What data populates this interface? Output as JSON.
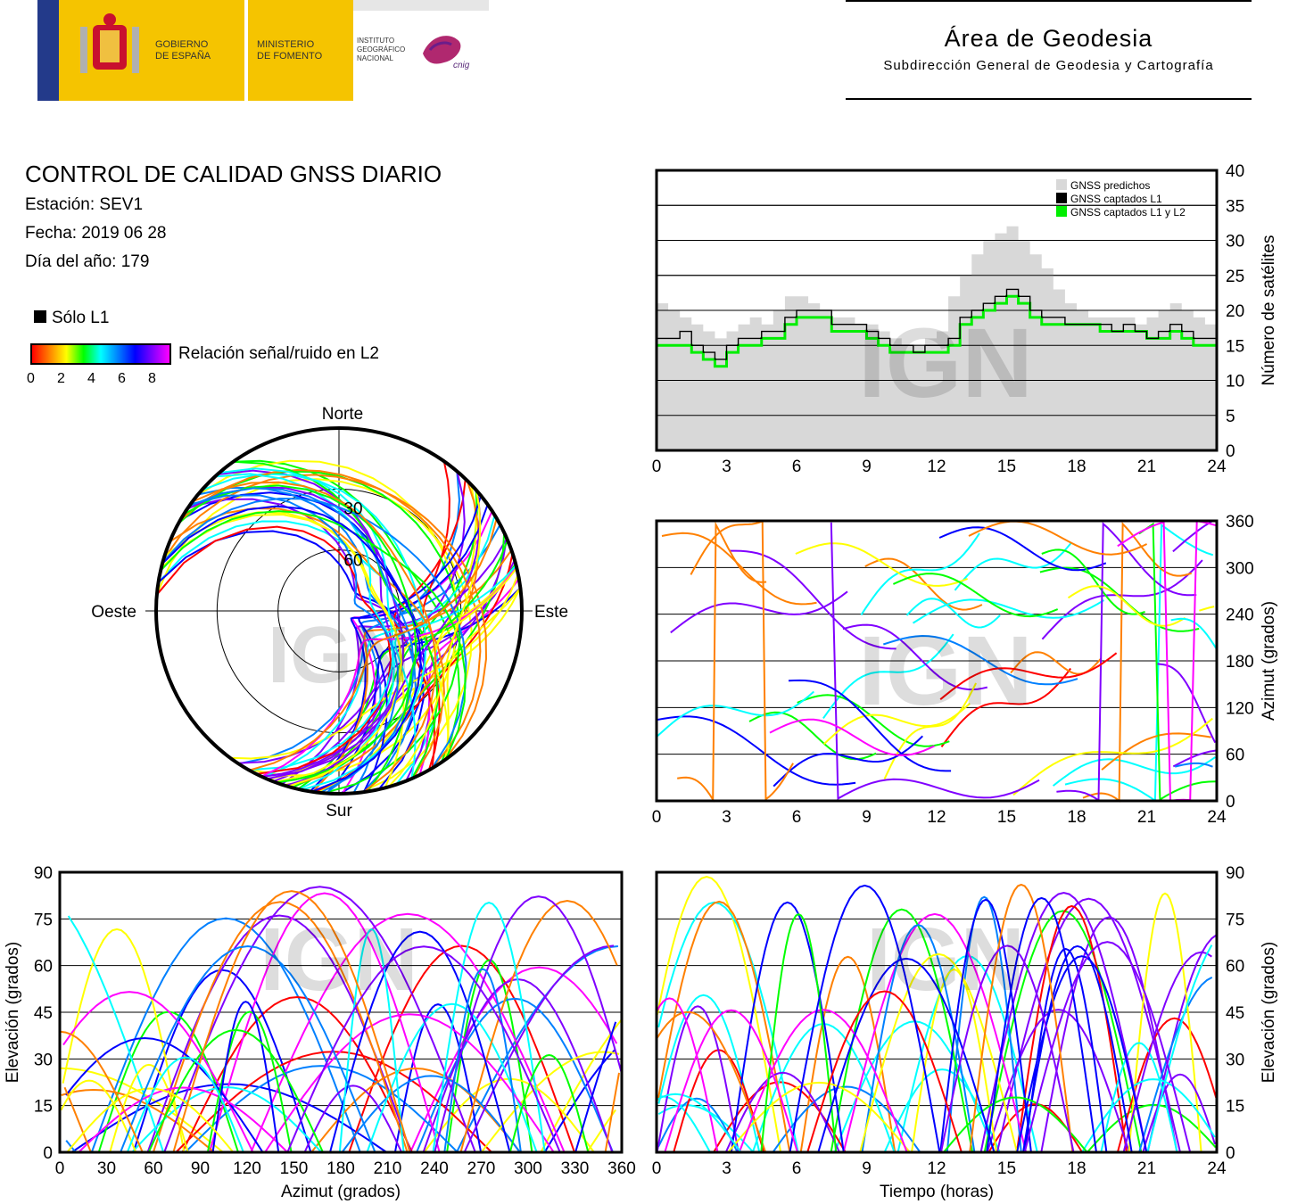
{
  "header": {
    "gobierno": "GOBIERNO DE ESPAÑA",
    "ministerio": "MINISTERIO DE FOMENTO",
    "instituto": "INSTITUTO GEOGRÁFICO NACIONAL",
    "cnig": "cnig",
    "area_title": "Área de Geodesia",
    "area_subtitle": "Subdirección General de Geodesia y Cartografía"
  },
  "info": {
    "title": "CONTROL DE CALIDAD GNSS DIARIO",
    "station": "Estación: SEV1",
    "date": "Fecha: 2019 06 28",
    "doy": "Día del año: 179"
  },
  "legend": {
    "l1_only": "Sólo L1",
    "snr_label": "Relación señal/ruido en L2",
    "snr_ticks": [
      "0",
      "2",
      "4",
      "6",
      "8"
    ]
  },
  "watermark": "IGN",
  "colors": {
    "l1": "#000000",
    "predicted": "#d8d8d8",
    "l1l2": "#00ee00",
    "snr_scale": [
      "#ff0000",
      "#ff8000",
      "#ffff00",
      "#00ff00",
      "#00ffff",
      "#0080ff",
      "#0000ff",
      "#8000ff",
      "#ff00ff"
    ]
  },
  "chart_data": [
    {
      "type": "area",
      "id": "satellite-count",
      "ylabel": "Número de satélites",
      "xlim": [
        0,
        24
      ],
      "ylim": [
        0,
        40
      ],
      "xticks": [
        "0",
        "3",
        "6",
        "9",
        "12",
        "15",
        "18",
        "21",
        "24"
      ],
      "yticks": [
        "0",
        "5",
        "10",
        "15",
        "20",
        "25",
        "30",
        "35",
        "40"
      ],
      "grid": true,
      "legend_position": "top-right",
      "series": [
        {
          "name": "GNSS predichos",
          "x": [
            0,
            0.5,
            1,
            1.5,
            2,
            2.5,
            3,
            3.5,
            4,
            4.5,
            5,
            5.5,
            6,
            6.5,
            7,
            7.5,
            8,
            8.5,
            9,
            9.5,
            10,
            10.5,
            11,
            11.5,
            12,
            12.5,
            13,
            13.5,
            14,
            14.5,
            15,
            15.5,
            16,
            16.5,
            17,
            17.5,
            18,
            18.5,
            19,
            19.5,
            20,
            20.5,
            21,
            21.5,
            22,
            22.5,
            23,
            23.5,
            24
          ],
          "values": [
            21,
            20,
            19,
            18,
            17,
            16,
            17,
            18,
            19,
            18,
            20,
            22,
            22,
            21,
            20,
            19,
            19,
            18,
            18,
            17,
            16,
            15,
            15,
            16,
            17,
            22,
            25,
            28,
            30,
            31,
            32,
            30,
            28,
            26,
            23,
            21,
            20,
            19,
            19,
            19,
            19,
            18,
            19,
            20,
            21,
            20,
            19,
            18,
            18
          ]
        },
        {
          "name": "GNSS captados L1",
          "x": [
            0,
            0.5,
            1,
            1.5,
            2,
            2.5,
            3,
            3.5,
            4,
            4.5,
            5,
            5.5,
            6,
            6.5,
            7,
            7.5,
            8,
            8.5,
            9,
            9.5,
            10,
            10.5,
            11,
            11.5,
            12,
            12.5,
            13,
            13.5,
            14,
            14.5,
            15,
            15.5,
            16,
            16.5,
            17,
            17.5,
            18,
            18.5,
            19,
            19.5,
            20,
            20.5,
            21,
            21.5,
            22,
            22.5,
            23,
            23.5,
            24
          ],
          "values": [
            16,
            16,
            17,
            15,
            14,
            13,
            15,
            16,
            16,
            17,
            17,
            19,
            20,
            20,
            20,
            18,
            18,
            18,
            17,
            16,
            15,
            15,
            14,
            15,
            15,
            16,
            19,
            20,
            21,
            22,
            23,
            22,
            20,
            19,
            19,
            18,
            18,
            18,
            18,
            17,
            18,
            17,
            16,
            17,
            18,
            17,
            16,
            16,
            16
          ]
        },
        {
          "name": "GNSS captados L1 y L2",
          "x": [
            0,
            0.5,
            1,
            1.5,
            2,
            2.5,
            3,
            3.5,
            4,
            4.5,
            5,
            5.5,
            6,
            6.5,
            7,
            7.5,
            8,
            8.5,
            9,
            9.5,
            10,
            10.5,
            11,
            11.5,
            12,
            12.5,
            13,
            13.5,
            14,
            14.5,
            15,
            15.5,
            16,
            16.5,
            17,
            17.5,
            18,
            18.5,
            19,
            19.5,
            20,
            20.5,
            21,
            21.5,
            22,
            22.5,
            23,
            23.5,
            24
          ],
          "values": [
            15,
            15,
            15,
            14,
            13,
            12,
            14,
            15,
            15,
            16,
            16,
            18,
            19,
            19,
            19,
            17,
            17,
            17,
            16,
            15,
            14,
            14,
            14,
            14,
            14,
            15,
            18,
            19,
            20,
            21,
            22,
            21,
            19,
            18,
            18,
            18,
            18,
            18,
            17,
            17,
            17,
            17,
            16,
            16,
            17,
            16,
            15,
            15,
            15
          ]
        }
      ]
    },
    {
      "type": "scatter",
      "id": "azimuth-vs-time",
      "ylabel": "Azimut (grados)",
      "xlim": [
        0,
        24
      ],
      "ylim": [
        0,
        360
      ],
      "xticks": [
        "0",
        "3",
        "6",
        "9",
        "12",
        "15",
        "18",
        "21",
        "24"
      ],
      "yticks": [
        "0",
        "60",
        "120",
        "180",
        "240",
        "300",
        "360"
      ],
      "grid": true
    },
    {
      "type": "scatter",
      "id": "skyplot",
      "polar": true,
      "directions": {
        "north": "Norte",
        "south": "Sur",
        "east": "Este",
        "west": "Oeste"
      },
      "rings": [
        "30",
        "60"
      ]
    },
    {
      "type": "scatter",
      "id": "elevation-vs-azimuth",
      "xlabel": "Azimut (grados)",
      "ylabel": "Elevación (grados)",
      "xlim": [
        0,
        360
      ],
      "ylim": [
        0,
        90
      ],
      "xticks": [
        "0",
        "30",
        "60",
        "90",
        "120",
        "150",
        "180",
        "210",
        "240",
        "270",
        "300",
        "330",
        "360"
      ],
      "yticks": [
        "0",
        "15",
        "30",
        "45",
        "60",
        "75",
        "90"
      ],
      "grid": true
    },
    {
      "type": "scatter",
      "id": "elevation-vs-time",
      "xlabel": "Tiempo (horas)",
      "ylabel": "Elevación (grados)",
      "xlim": [
        0,
        24
      ],
      "ylim": [
        0,
        90
      ],
      "xticks": [
        "0",
        "3",
        "6",
        "9",
        "12",
        "15",
        "18",
        "21",
        "24"
      ],
      "yticks": [
        "0",
        "15",
        "30",
        "45",
        "60",
        "75",
        "90"
      ],
      "grid": true
    }
  ]
}
